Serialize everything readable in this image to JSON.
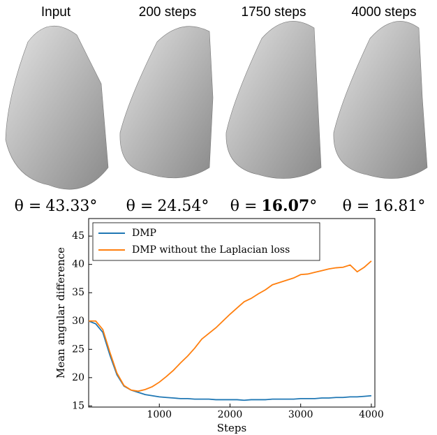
{
  "panels": [
    {
      "title": "Input",
      "theta_lhs": "θ =",
      "theta_value": "43.33",
      "theta_unit": "°",
      "bold": false
    },
    {
      "title": "200 steps",
      "theta_lhs": "θ =",
      "theta_value": "24.54",
      "theta_unit": "°",
      "bold": false
    },
    {
      "title": "1750 steps",
      "theta_lhs": "θ =",
      "theta_value": "16.07",
      "theta_unit": "°",
      "bold": true
    },
    {
      "title": "4000 steps",
      "theta_lhs": "θ =",
      "theta_value": "16.81",
      "theta_unit": "°",
      "bold": false
    }
  ],
  "chart_data": {
    "type": "line",
    "x_label": "Steps",
    "y_label": "Mean angular difference",
    "x": [
      0,
      100,
      200,
      300,
      400,
      500,
      600,
      700,
      800,
      900,
      1000,
      1100,
      1200,
      1300,
      1400,
      1500,
      1600,
      1700,
      1800,
      1900,
      2000,
      2100,
      2200,
      2300,
      2400,
      2500,
      2600,
      2700,
      2800,
      2900,
      3000,
      3100,
      3200,
      3300,
      3400,
      3500,
      3600,
      3700,
      3800,
      3900,
      4000
    ],
    "series": [
      {
        "name": "DMP",
        "color": "#1f77b4",
        "values": [
          30,
          29.5,
          28,
          24,
          20.5,
          18.5,
          17.8,
          17.4,
          17.0,
          16.8,
          16.6,
          16.5,
          16.4,
          16.3,
          16.3,
          16.2,
          16.2,
          16.2,
          16.1,
          16.1,
          16.1,
          16.1,
          16.0,
          16.1,
          16.1,
          16.1,
          16.2,
          16.2,
          16.2,
          16.2,
          16.3,
          16.3,
          16.3,
          16.4,
          16.4,
          16.5,
          16.5,
          16.6,
          16.6,
          16.7,
          16.8
        ]
      },
      {
        "name": "DMP without the Laplacian loss",
        "color": "#ff7f0e",
        "values": [
          30,
          30,
          28.5,
          24.5,
          20.8,
          18.6,
          17.8,
          17.6,
          17.9,
          18.4,
          19.2,
          20.2,
          21.3,
          22.6,
          23.8,
          25.2,
          26.8,
          27.8,
          28.8,
          30.0,
          31.2,
          32.3,
          33.4,
          34.0,
          34.8,
          35.5,
          36.4,
          36.8,
          37.2,
          37.6,
          38.2,
          38.3,
          38.6,
          38.9,
          39.2,
          39.4,
          39.5,
          39.9,
          38.7,
          39.5,
          40.6
        ]
      }
    ],
    "xlim": [
      0,
      4050
    ],
    "ylim": [
      14.8,
      48.1
    ],
    "xticks": [
      1000,
      2000,
      3000,
      4000
    ],
    "yticks": [
      15,
      20,
      25,
      30,
      35,
      40,
      45
    ],
    "legend": "upper left",
    "grid": false
  }
}
